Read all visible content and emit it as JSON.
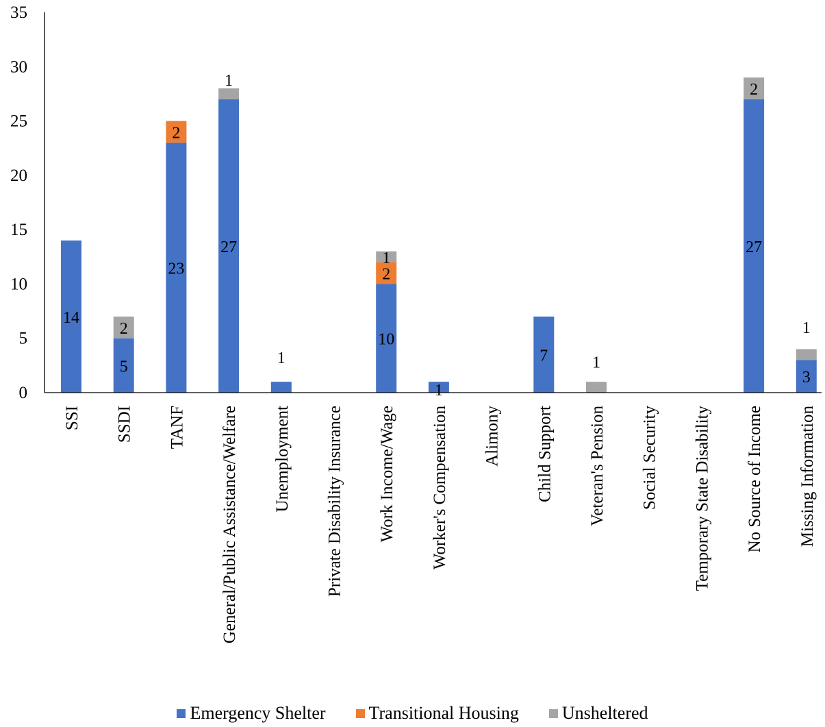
{
  "chart_data": {
    "type": "bar",
    "stacked": true,
    "title": "",
    "xlabel": "",
    "ylabel": "",
    "ylim": [
      0,
      35
    ],
    "yticks": [
      "0",
      "5",
      "10",
      "15",
      "20",
      "25",
      "30",
      "35"
    ],
    "grid": false,
    "legend_position": "bottom",
    "categories": [
      "SSI",
      "SSDI",
      "TANF",
      "General/Public Assistance/Welfare",
      "Unemployment",
      "Private Disability Insurance",
      "Work Income/Wage",
      "Worker's Compensation",
      "Alimony",
      "Child Support",
      "Veteran's Pension",
      "Social Security",
      "Temporary State Disability",
      "No Source of Income",
      "Missing Information"
    ],
    "series": [
      {
        "name": "Emergency Shelter",
        "color": "#4472C4",
        "values": [
          14,
          5,
          23,
          27,
          1,
          0,
          10,
          1,
          0,
          7,
          0,
          0,
          0,
          27,
          3
        ]
      },
      {
        "name": "Transitional Housing",
        "color": "#ED7D31",
        "values": [
          0,
          0,
          2,
          0,
          0,
          0,
          2,
          0,
          0,
          0,
          0,
          0,
          0,
          0,
          0
        ]
      },
      {
        "name": "Unsheltered",
        "color": "#A5A5A5",
        "values": [
          0,
          2,
          0,
          1,
          0,
          0,
          1,
          0,
          0,
          0,
          1,
          0,
          0,
          2,
          1
        ]
      }
    ],
    "data_labels": [
      {
        "cat": 0,
        "series": 0,
        "text": "14"
      },
      {
        "cat": 1,
        "series": 0,
        "text": "5"
      },
      {
        "cat": 1,
        "series": 2,
        "text": "2"
      },
      {
        "cat": 2,
        "series": 0,
        "text": "23"
      },
      {
        "cat": 2,
        "series": 1,
        "text": "2"
      },
      {
        "cat": 3,
        "series": 0,
        "text": "27"
      },
      {
        "cat": 3,
        "series": 2,
        "text": "1"
      },
      {
        "cat": 4,
        "series": 0,
        "text": "1"
      },
      {
        "cat": 6,
        "series": 0,
        "text": "10"
      },
      {
        "cat": 6,
        "series": 1,
        "text": "2"
      },
      {
        "cat": 6,
        "series": 2,
        "text": "1"
      },
      {
        "cat": 7,
        "series": 0,
        "text": "1"
      },
      {
        "cat": 9,
        "series": 0,
        "text": "7"
      },
      {
        "cat": 10,
        "series": 2,
        "text": "1"
      },
      {
        "cat": 13,
        "series": 0,
        "text": "27"
      },
      {
        "cat": 13,
        "series": 2,
        "text": "2"
      },
      {
        "cat": 14,
        "series": 0,
        "text": "3"
      },
      {
        "cat": 14,
        "series": 2,
        "text": "1"
      }
    ]
  }
}
